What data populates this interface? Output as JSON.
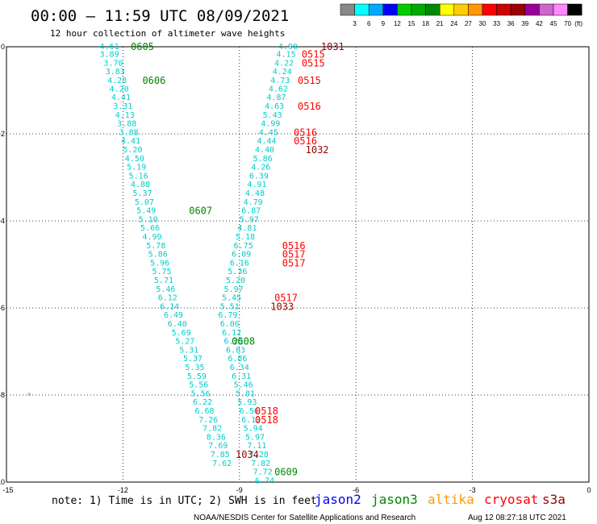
{
  "header": {
    "title": "00:00 – 11:59 UTC 08/09/2021",
    "subtitle": "12 hour collection of altimeter wave heights"
  },
  "scale": {
    "labels": [
      "3",
      "6",
      "9",
      "12",
      "15",
      "18",
      "21",
      "24",
      "27",
      "30",
      "33",
      "36",
      "39",
      "42",
      "45",
      "70"
    ],
    "unit": "(ft)",
    "colors": [
      "#888888",
      "#00ffff",
      "#00aaff",
      "#0000ff",
      "#00cc00",
      "#00aa00",
      "#008800",
      "#ffff00",
      "#ffcc00",
      "#ff9900",
      "#ff0000",
      "#cc0000",
      "#990000",
      "#990099",
      "#cc66cc",
      "#ff88ff",
      "#000000"
    ]
  },
  "footer": {
    "note": "note: 1) Time is in UTC; 2) SWH is in feet",
    "credit": "NOAA/NESDIS Center for Satellite Applications and Research",
    "timestamp": "Aug 12 08:27:18 UTC 2021"
  },
  "legend": [
    {
      "name": "jason2",
      "color": "#0000ff"
    },
    {
      "name": "jason3",
      "color": "#008800"
    },
    {
      "name": "altika",
      "color": "#ff9900"
    },
    {
      "name": "cryosat",
      "color": "#ff0000"
    },
    {
      "name": "s3a",
      "color": "#990000"
    }
  ],
  "chart_data": {
    "type": "scatter",
    "xlim": [
      -15,
      0
    ],
    "ylim": [
      -10,
      0
    ],
    "xticks": [
      -15,
      -12,
      -9,
      -6,
      -3,
      0
    ],
    "yticks": [
      0,
      -2,
      -4,
      -6,
      -8,
      -10
    ],
    "grid": true,
    "track_color": "#00cccc",
    "track_a": [
      [
        -12.6,
        0,
        "4.61"
      ],
      [
        -12.6,
        -0.18,
        "3.89"
      ],
      [
        -12.5,
        -0.38,
        "3.70"
      ],
      [
        -12.45,
        -0.57,
        "3.83"
      ],
      [
        -12.4,
        -0.78,
        "4.28"
      ],
      [
        -12.35,
        -0.97,
        "4.20"
      ],
      [
        -12.3,
        -1.17,
        "4.41"
      ],
      [
        -12.25,
        -1.37,
        "3.31"
      ],
      [
        -12.2,
        -1.57,
        "4.13"
      ],
      [
        -12.15,
        -1.77,
        "3.88"
      ],
      [
        -12.1,
        -1.97,
        "3.88"
      ],
      [
        -12.05,
        -2.17,
        "4.41"
      ],
      [
        -12.0,
        -2.37,
        "5.20"
      ],
      [
        -11.95,
        -2.57,
        "4.50"
      ],
      [
        -11.9,
        -2.77,
        "5.19"
      ],
      [
        -11.85,
        -2.97,
        "5.16"
      ],
      [
        -11.8,
        -3.17,
        "4.88"
      ],
      [
        -11.75,
        -3.37,
        "5.37"
      ],
      [
        -11.7,
        -3.57,
        "5.07"
      ],
      [
        -11.65,
        -3.77,
        "5.49"
      ],
      [
        -11.6,
        -3.97,
        "5.10"
      ],
      [
        -11.55,
        -4.17,
        "5.66"
      ],
      [
        -11.5,
        -4.37,
        "4.99"
      ],
      [
        -11.4,
        -4.57,
        "5.78"
      ],
      [
        -11.35,
        -4.77,
        "5.86"
      ],
      [
        -11.3,
        -4.97,
        "5.96"
      ],
      [
        -11.25,
        -5.17,
        "5.75"
      ],
      [
        -11.2,
        -5.37,
        "5.71"
      ],
      [
        -11.15,
        -5.57,
        "5.46"
      ],
      [
        -11.1,
        -5.77,
        "6.12"
      ],
      [
        -11.05,
        -5.97,
        "6.14"
      ],
      [
        -10.95,
        -6.17,
        "6.49"
      ],
      [
        -10.85,
        -6.37,
        "6.40"
      ],
      [
        -10.75,
        -6.57,
        "5.69"
      ],
      [
        -10.65,
        -6.77,
        "5.27"
      ],
      [
        -10.55,
        -6.97,
        "5.31"
      ],
      [
        -10.45,
        -7.17,
        "5.37"
      ],
      [
        -10.4,
        -7.37,
        "5.35"
      ],
      [
        -10.35,
        -7.57,
        "5.59"
      ],
      [
        -10.3,
        -7.77,
        "5.56"
      ],
      [
        -10.25,
        -7.97,
        "5.56"
      ],
      [
        -10.2,
        -8.17,
        "6.22"
      ],
      [
        -10.15,
        -8.37,
        "6.68"
      ],
      [
        -10.05,
        -8.57,
        "7.26"
      ],
      [
        -9.95,
        -8.77,
        "7.82"
      ],
      [
        -9.85,
        -8.97,
        "8.36"
      ],
      [
        -9.8,
        -9.17,
        "7.69"
      ],
      [
        -9.75,
        -9.37,
        "7.85"
      ],
      [
        -9.7,
        -9.57,
        "7.62"
      ]
    ],
    "track_b": [
      [
        -8.0,
        0,
        "4.90"
      ],
      [
        -8.05,
        -0.18,
        "4.15"
      ],
      [
        -8.1,
        -0.38,
        "4.22"
      ],
      [
        -8.15,
        -0.57,
        "4.24"
      ],
      [
        -8.2,
        -0.78,
        "4.73"
      ],
      [
        -8.25,
        -0.97,
        "4.62"
      ],
      [
        -8.3,
        -1.17,
        "4.87"
      ],
      [
        -8.35,
        -1.37,
        "4.63"
      ],
      [
        -8.4,
        -1.57,
        "5.43"
      ],
      [
        -8.45,
        -1.77,
        "4.99"
      ],
      [
        -8.5,
        -1.97,
        "4.45"
      ],
      [
        -8.55,
        -2.17,
        "4.44"
      ],
      [
        -8.6,
        -2.37,
        "4.40"
      ],
      [
        -8.65,
        -2.57,
        "5.86"
      ],
      [
        -8.7,
        -2.77,
        "4.26"
      ],
      [
        -8.75,
        -2.97,
        "6.39"
      ],
      [
        -8.8,
        -3.17,
        "4.91"
      ],
      [
        -8.85,
        -3.37,
        "4.48"
      ],
      [
        -8.9,
        -3.57,
        "4.79"
      ],
      [
        -8.95,
        -3.77,
        "6.87"
      ],
      [
        -9.0,
        -3.97,
        "5.97"
      ],
      [
        -9.05,
        -4.17,
        "4.81"
      ],
      [
        -9.1,
        -4.37,
        "5.18"
      ],
      [
        -9.15,
        -4.57,
        "6.75"
      ],
      [
        -9.2,
        -4.77,
        "6.09"
      ],
      [
        -9.25,
        -4.97,
        "6.16"
      ],
      [
        -9.3,
        -5.17,
        "5.36"
      ],
      [
        -9.35,
        -5.37,
        "5.20"
      ],
      [
        -9.4,
        -5.57,
        "5.97"
      ],
      [
        -9.45,
        -5.77,
        "5.45"
      ],
      [
        -9.5,
        -5.97,
        "5.51"
      ],
      [
        -9.55,
        -6.17,
        "6.79"
      ],
      [
        -9.5,
        -6.37,
        "6.06"
      ],
      [
        -9.45,
        -6.57,
        "6.12"
      ],
      [
        -9.4,
        -6.77,
        "6.22"
      ],
      [
        -9.35,
        -6.97,
        "6.83"
      ],
      [
        -9.3,
        -7.17,
        "6.86"
      ],
      [
        -9.25,
        -7.37,
        "6.34"
      ],
      [
        -9.2,
        -7.57,
        "6.31"
      ],
      [
        -9.15,
        -7.77,
        "5.46"
      ],
      [
        -9.1,
        -7.97,
        "5.81"
      ],
      [
        -9.05,
        -8.17,
        "5.93"
      ],
      [
        -9.0,
        -8.37,
        "6.56"
      ],
      [
        -8.95,
        -8.57,
        "6.12"
      ],
      [
        -8.9,
        -8.77,
        "5.94"
      ],
      [
        -8.85,
        -8.97,
        "5.97"
      ],
      [
        -8.8,
        -9.17,
        "7.11"
      ],
      [
        -8.75,
        -9.37,
        "7.28"
      ],
      [
        -8.7,
        -9.57,
        "7.82"
      ],
      [
        -8.65,
        -9.77,
        "7.72"
      ],
      [
        -8.6,
        -9.97,
        "6.74"
      ]
    ],
    "pass_labels": [
      {
        "x": -11.8,
        "y": 0,
        "text": "0605",
        "series": "jason3"
      },
      {
        "x": -11.5,
        "y": -0.78,
        "text": "0606",
        "series": "jason3"
      },
      {
        "x": -10.3,
        "y": -3.77,
        "text": "0607",
        "series": "jason3"
      },
      {
        "x": -9.2,
        "y": -6.77,
        "text": "0608",
        "series": "jason3"
      },
      {
        "x": -8.1,
        "y": -9.77,
        "text": "0609",
        "series": "jason3"
      },
      {
        "x": -6.9,
        "y": 0,
        "text": "1031",
        "series": "s3a"
      },
      {
        "x": -7.4,
        "y": -0.18,
        "text": "0515",
        "series": "cryosat"
      },
      {
        "x": -7.4,
        "y": -0.38,
        "text": "0515",
        "series": "cryosat"
      },
      {
        "x": -7.5,
        "y": -0.78,
        "text": "0515",
        "series": "cryosat"
      },
      {
        "x": -7.5,
        "y": -1.37,
        "text": "0516",
        "series": "cryosat"
      },
      {
        "x": -7.6,
        "y": -1.97,
        "text": "0516",
        "series": "cryosat"
      },
      {
        "x": -7.6,
        "y": -2.17,
        "text": "0516",
        "series": "cryosat"
      },
      {
        "x": -7.3,
        "y": -2.37,
        "text": "1032",
        "series": "s3a"
      },
      {
        "x": -7.9,
        "y": -4.57,
        "text": "0516",
        "series": "cryosat"
      },
      {
        "x": -7.9,
        "y": -4.77,
        "text": "0517",
        "series": "cryosat"
      },
      {
        "x": -7.9,
        "y": -4.97,
        "text": "0517",
        "series": "cryosat"
      },
      {
        "x": -8.1,
        "y": -5.77,
        "text": "0517",
        "series": "cryosat"
      },
      {
        "x": -8.2,
        "y": -5.97,
        "text": "1033",
        "series": "s3a"
      },
      {
        "x": -8.6,
        "y": -8.37,
        "text": "0518",
        "series": "cryosat"
      },
      {
        "x": -8.6,
        "y": -8.57,
        "text": "0518",
        "series": "cryosat"
      },
      {
        "x": -9.1,
        "y": -9.37,
        "text": "1034",
        "series": "s3a"
      }
    ]
  }
}
